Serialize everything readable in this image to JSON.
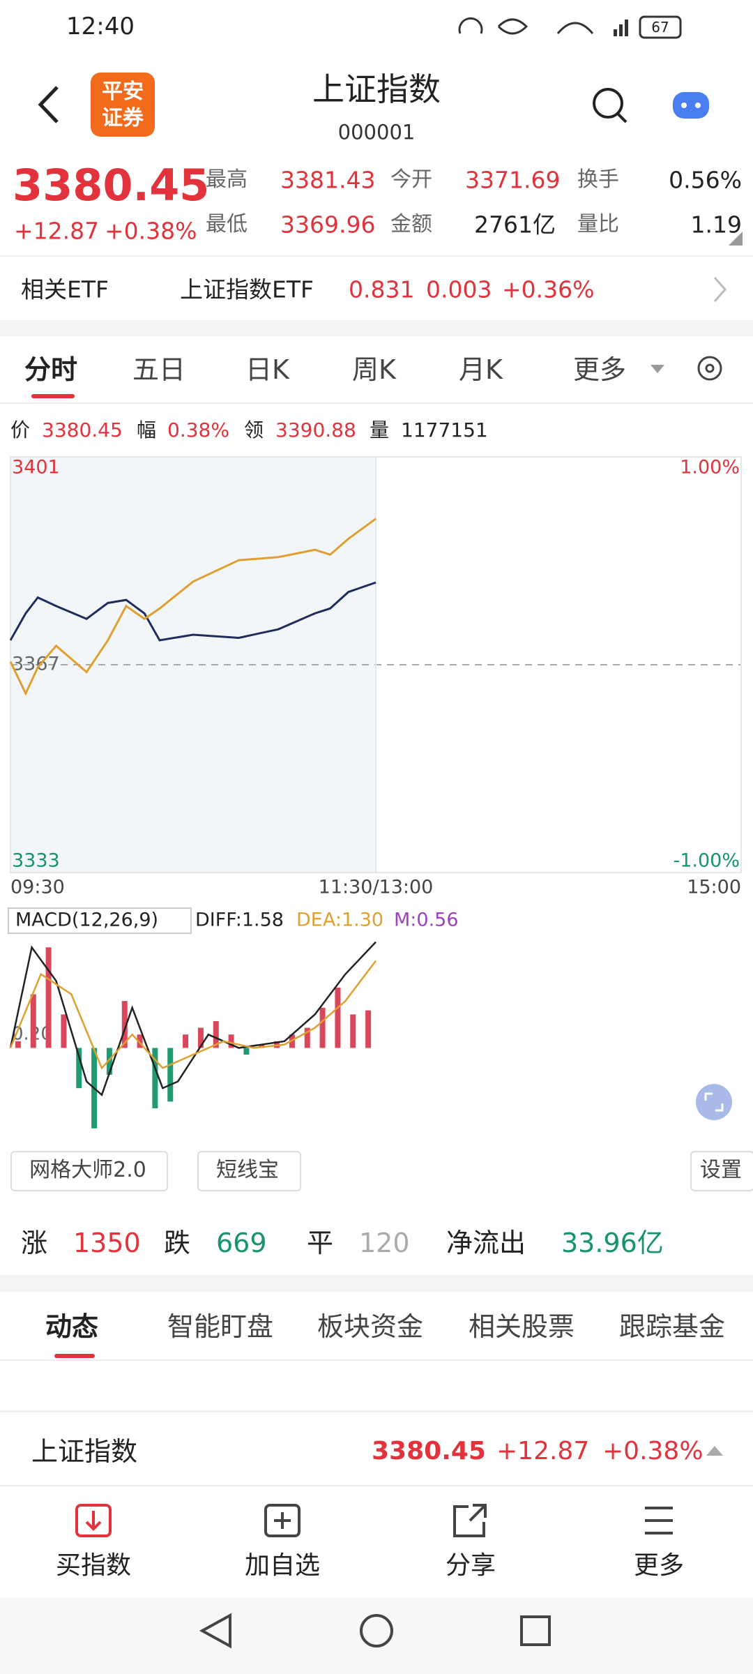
{
  "status": {
    "time": "12:40",
    "battery": "67"
  },
  "header": {
    "logo": [
      "平安",
      "证券"
    ],
    "title": "上证指数",
    "code": "000001"
  },
  "quote": {
    "price": "3380.45",
    "change": "+12.87",
    "change_pct": "+0.38%",
    "stats": [
      {
        "label": "最高",
        "value": "3381.43"
      },
      {
        "label": "今开",
        "value": "3371.69"
      },
      {
        "label": "换手",
        "value": "0.56%"
      },
      {
        "label": "最低",
        "value": "3369.96"
      },
      {
        "label": "金额",
        "value": "2761亿"
      },
      {
        "label": "量比",
        "value": "1.19"
      }
    ]
  },
  "etf": {
    "label": "相关ETF",
    "name": "上证指数ETF",
    "price": "0.831",
    "change": "0.003",
    "change_pct": "+0.36%"
  },
  "tabs": [
    "分时",
    "五日",
    "日K",
    "周K",
    "月K",
    "更多"
  ],
  "info": [
    {
      "label": "价",
      "value": "3380.45"
    },
    {
      "label": "幅",
      "value": "0.38%"
    },
    {
      "label": "领",
      "value": "3390.88"
    },
    {
      "label": "量",
      "value": "1177151"
    }
  ],
  "chart_data": [
    {
      "type": "line",
      "xlim": [
        0,
        240
      ],
      "xticks": [
        {
          "value": 0,
          "label": "09:30"
        },
        {
          "value": 120,
          "label": "11:30/13:00"
        },
        {
          "value": 240,
          "label": "15:00"
        }
      ],
      "ylim": [
        3333,
        3401
      ],
      "yticks": [
        3333,
        3367,
        3401
      ],
      "y2lim": [
        -1,
        1
      ],
      "y2ticks": [
        {
          "value": 1,
          "label": "1.00%"
        },
        {
          "value": -1,
          "label": "-1.00%"
        }
      ],
      "x": [
        0,
        5,
        9,
        15,
        25,
        32,
        38,
        44,
        49,
        60,
        75,
        88,
        100,
        105,
        111,
        120
      ],
      "series": [
        {
          "color": "#1f2d5c",
          "values": [
            3371.0,
            3375.4,
            3378.0,
            3376.6,
            3374.5,
            3377.1,
            3377.6,
            3375.4,
            3371.0,
            3371.9,
            3371.4,
            3372.8,
            3375.4,
            3376.2,
            3378.9,
            3380.45
          ]
        },
        {
          "color": "#e0a030",
          "values": [
            3367.5,
            3362.3,
            3366.6,
            3370.1,
            3365.8,
            3371.0,
            3376.6,
            3374.5,
            3376.2,
            3380.6,
            3384.1,
            3384.6,
            3385.8,
            3385.0,
            3387.6,
            3390.88
          ]
        }
      ]
    },
    {
      "type": "macd",
      "title": "MACD(12,26,9)",
      "legend": [
        "DIFF:1.58",
        "DEA:1.30",
        "M:0.56"
      ],
      "xlim": [
        0,
        240
      ],
      "ylim": [
        -1.4,
        1.7
      ],
      "yticks": [
        {
          "value": 0.2,
          "label": "0.20"
        }
      ],
      "bars": {
        "up_color": "#d9475a",
        "down_color": "#1f9a72",
        "x": [
          2.5,
          7.5,
          12.5,
          17.5,
          22.5,
          27.5,
          32.5,
          37.5,
          42.5,
          47.5,
          52.5,
          57.5,
          62.5,
          67.5,
          72.5,
          77.5,
          82.5,
          87.5,
          92.5,
          97.5,
          102.5,
          107.5,
          112.5,
          117.5
        ],
        "values": [
          0.1,
          0.8,
          1.5,
          0.5,
          -0.6,
          -1.2,
          -0.4,
          0.7,
          0.2,
          -0.9,
          -0.8,
          0.2,
          0.3,
          0.4,
          0.2,
          -0.1,
          0.05,
          0.1,
          0.2,
          0.3,
          0.6,
          0.9,
          0.5,
          0.56
        ]
      },
      "series": [
        {
          "color": "#222222",
          "x": [
            0,
            7,
            15,
            25,
            30,
            40,
            50,
            55,
            65,
            75,
            90,
            100,
            110,
            120
          ],
          "values": [
            0,
            1.5,
            1.0,
            -0.5,
            -0.7,
            0.6,
            -0.6,
            -0.5,
            0.2,
            0.0,
            0.1,
            0.5,
            1.1,
            1.58
          ]
        },
        {
          "color": "#e0a030",
          "x": [
            0,
            10,
            20,
            30,
            40,
            50,
            60,
            70,
            80,
            90,
            100,
            110,
            120
          ],
          "values": [
            0,
            1.1,
            0.8,
            -0.3,
            0.2,
            -0.3,
            -0.1,
            0.1,
            0.0,
            0.05,
            0.3,
            0.7,
            1.3
          ]
        }
      ]
    }
  ],
  "tools": [
    "网格大师2.0",
    "短线宝",
    "设置"
  ],
  "breadth": [
    {
      "label": "涨",
      "value": "1350"
    },
    {
      "label": "跌",
      "value": "669"
    },
    {
      "label": "平",
      "value": "120"
    },
    {
      "label": "净流出",
      "value": "33.96亿"
    }
  ],
  "news_tabs": [
    "动态",
    "智能盯盘",
    "板块资金",
    "相关股票",
    "跟踪基金"
  ],
  "bottom_quote": {
    "name": "上证指数",
    "price": "3380.45",
    "change": "+12.87",
    "change_pct": "+0.38%"
  },
  "toolbar": [
    "买指数",
    "加自选",
    "分享",
    "更多"
  ]
}
